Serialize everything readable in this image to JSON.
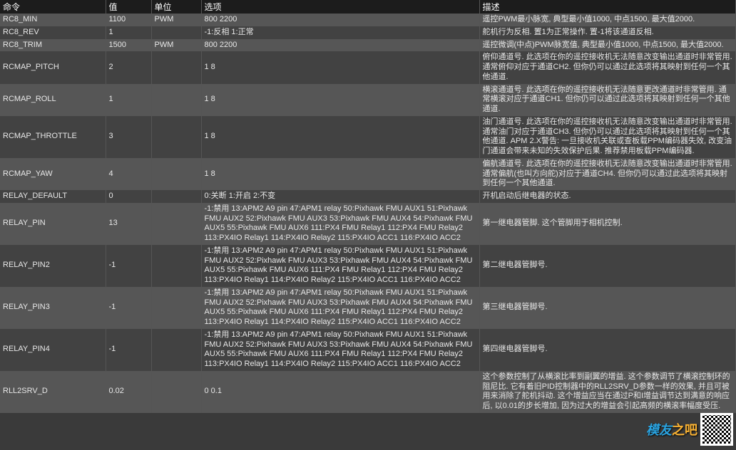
{
  "header": {
    "cmd": "命令",
    "val": "值",
    "unit": "单位",
    "opt": "选项",
    "desc": "描述"
  },
  "rows": [
    {
      "cmd": "RC8_MIN",
      "val": "1100",
      "unit": "PWM",
      "opt": "800 2200",
      "desc": "遥控PWM最小脉宽, 典型最小值1000, 中点1500, 最大值2000."
    },
    {
      "cmd": "RC8_REV",
      "val": "1",
      "unit": "",
      "opt": "-1:反相 1:正常",
      "desc": "舵机行为反相. 置1为正常操作. 置-1将该通道反相."
    },
    {
      "cmd": "RC8_TRIM",
      "val": "1500",
      "unit": "PWM",
      "opt": "800 2200",
      "desc": "遥控微调(中点)PWM脉宽值, 典型最小值1000, 中点1500, 最大值2000."
    },
    {
      "cmd": "RCMAP_PITCH",
      "val": "2",
      "unit": "",
      "opt": "1 8",
      "desc": "俯仰通道号. 此选项在你的遥控接收机无法随意改变输出通道时非常管用. 通常俯仰对应于通道CH2. 但你仍可以通过此选项将其映射到任何一个其他通道."
    },
    {
      "cmd": "RCMAP_ROLL",
      "val": "1",
      "unit": "",
      "opt": "1 8",
      "desc": "横滚通道号. 此选项在你的遥控接收机无法随意更改通道时非常管用. 通常横滚对应于通道CH1. 但你仍可以通过此选项将其映射到任何一个其他通道."
    },
    {
      "cmd": "RCMAP_THROTTLE",
      "val": "3",
      "unit": "",
      "opt": "1 8",
      "desc": "油门通道号. 此选项在你的遥控接收机无法随意改变输出通道时非常管用. 通常油门对应于通道CH3. 但你仍可以通过此选项将其映射到任何一个其他通道. APM 2.X警告: 一旦接收机关联或查板载PPM编码器失效, 改变油门通道会带来未知的失效保护后果. 推荐禁用板载PPM编码器."
    },
    {
      "cmd": "RCMAP_YAW",
      "val": "4",
      "unit": "",
      "opt": "1 8",
      "desc": "偏航通道号. 此选项在你的遥控接收机无法随意改变输出通道时非常管用. 通常偏航(也叫方向舵)对应于通道CH4. 但你仍可以通过此选项将其映射到任何一个其他通道."
    },
    {
      "cmd": "RELAY_DEFAULT",
      "val": "0",
      "unit": "",
      "opt": "0:关断 1:开启 2:不变",
      "desc": "开机启动后继电器的状态."
    },
    {
      "cmd": "RELAY_PIN",
      "val": "13",
      "unit": "",
      "opt": "-1:禁用 13:APM2 A9 pin 47:APM1 relay 50:Pixhawk FMU AUX1 51:Pixhawk FMU AUX2 52:Pixhawk FMU AUX3 53:Pixhawk FMU AUX4 54:Pixhawk FMU AUX5 55:Pixhawk FMU AUX6 111:PX4 FMU Relay1 112:PX4 FMU Relay2 113:PX4IO Relay1 114:PX4IO Relay2 115:PX4IO ACC1 116:PX4IO ACC2",
      "desc": "第一继电器管脚. 这个管脚用于相机控制."
    },
    {
      "cmd": "RELAY_PIN2",
      "val": "-1",
      "unit": "",
      "opt": "-1:禁用 13:APM2 A9 pin 47:APM1 relay 50:Pixhawk FMU AUX1 51:Pixhawk FMU AUX2 52:Pixhawk FMU AUX3 53:Pixhawk FMU AUX4 54:Pixhawk FMU AUX5 55:Pixhawk FMU AUX6 111:PX4 FMU Relay1 112:PX4 FMU Relay2 113:PX4IO Relay1 114:PX4IO Relay2 115:PX4IO ACC1 116:PX4IO ACC2",
      "desc": "第二继电器管脚号."
    },
    {
      "cmd": "RELAY_PIN3",
      "val": "-1",
      "unit": "",
      "opt": "-1:禁用 13:APM2 A9 pin 47:APM1 relay 50:Pixhawk FMU AUX1 51:Pixhawk FMU AUX2 52:Pixhawk FMU AUX3 53:Pixhawk FMU AUX4 54:Pixhawk FMU AUX5 55:Pixhawk FMU AUX6 111:PX4 FMU Relay1 112:PX4 FMU Relay2 113:PX4IO Relay1 114:PX4IO Relay2 115:PX4IO ACC1 116:PX4IO ACC2",
      "desc": "第三继电器管脚号."
    },
    {
      "cmd": "RELAY_PIN4",
      "val": "-1",
      "unit": "",
      "opt": "-1:禁用 13:APM2 A9 pin 47:APM1 relay 50:Pixhawk FMU AUX1 51:Pixhawk FMU AUX2 52:Pixhawk FMU AUX3 53:Pixhawk FMU AUX4 54:Pixhawk FMU AUX5 55:Pixhawk FMU AUX6 111:PX4 FMU Relay1 112:PX4 FMU Relay2 113:PX4IO Relay1 114:PX4IO Relay2 115:PX4IO ACC1 116:PX4IO ACC2",
      "desc": "第四继电器管脚号."
    },
    {
      "cmd": "RLL2SRV_D",
      "val": "0.02",
      "unit": "",
      "opt": "0 0.1",
      "desc": "这个参数控制了从横滚比率到副翼的增益. 这个参数调节了横滚控制环的阻尼比. 它有着旧PID控制器中的RLL2SRV_D参数一样的效果, 并且可被用来消除了舵机抖动. 这个增益应当在通过P和I增益调节达到满意的响应后, 以0.01的步长增加, 因为过大的增益会引起高频的横滚率幅度受压."
    }
  ],
  "watermark": {
    "brand_a": "模友",
    "brand_b": "之吧"
  }
}
